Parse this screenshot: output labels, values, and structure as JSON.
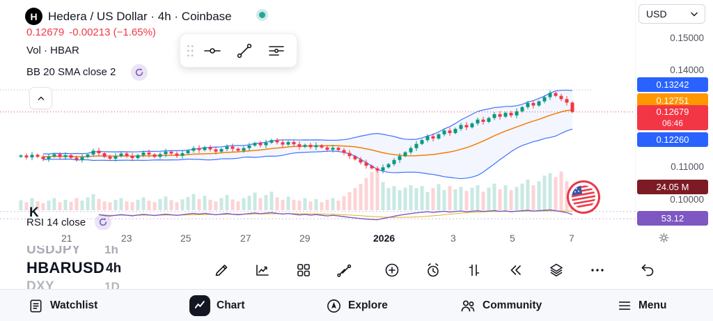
{
  "header": {
    "logo_letter": "H",
    "title": "Hedera / US Dollar · 4h · Coinbase",
    "price": "0.12679",
    "change": "-0.00213 (−1.65%)",
    "vol_label": "Vol · HBAR",
    "bb_label": "BB 20 SMA close 2",
    "rsi_label": "RSI 14 close",
    "currency": "USD"
  },
  "price_scale": {
    "labels": [
      "0.15000",
      "0.14000",
      "0.11000",
      "0.10000"
    ],
    "badges": [
      {
        "text": "0.13242"
      },
      {
        "text": "0.12751"
      },
      {
        "text": "0.12679",
        "sub": "06:46"
      },
      {
        "text": "0.12260"
      },
      {
        "text": "24.05 M"
      },
      {
        "text": "53.12"
      }
    ]
  },
  "x_axis": {
    "labels": [
      "21",
      "23",
      "25",
      "27",
      "29",
      "2026",
      "3",
      "5",
      "7"
    ]
  },
  "watchlist_peek": {
    "clipped_letter": "K",
    "rows": [
      {
        "symbol": "USDJPY",
        "tf": "1h"
      },
      {
        "symbol": "HBARUSD",
        "tf": "4h"
      },
      {
        "symbol": "DXY",
        "tf": "1D"
      }
    ]
  },
  "bottom_nav": {
    "items": [
      "Watchlist",
      "Chart",
      "Explore",
      "Community",
      "Menu"
    ]
  },
  "colors": {
    "up": "#089981",
    "down": "#f23645",
    "bb": "#2962ff",
    "bb_basis": "#f57c00",
    "rsi": "#7e57c2",
    "rsi_ma": "#e0b418",
    "badge_blue": "#2962ff",
    "badge_orange": "#ff9800",
    "badge_red": "#f23645",
    "badge_maroon": "#7c1b23",
    "badge_purple": "#7e57c2",
    "status_teal": "#26a69a"
  },
  "chart_data": {
    "type": "candlestick",
    "symbol": "HBARUSD",
    "exchange": "Coinbase",
    "interval": "4h",
    "title": "Hedera / US Dollar · 4h · Coinbase",
    "ylim": [
      0.0965,
      0.162
    ],
    "x_ticks": [
      "21",
      "23",
      "25",
      "27",
      "29",
      "2026",
      "3",
      "5",
      "7"
    ],
    "current_price": 0.12679,
    "countdown": "06:46",
    "volume_current": "24.05 M",
    "bb": {
      "length": 20,
      "mult": 2,
      "upper": 0.13242,
      "basis": 0.12751,
      "lower": 0.1226
    },
    "rsi": {
      "length": 14,
      "value": 53.12
    },
    "closes": [
      0.1132,
      0.1126,
      0.1134,
      0.1128,
      0.1121,
      0.1129,
      0.1136,
      0.1127,
      0.1133,
      0.1125,
      0.1119,
      0.1127,
      0.1135,
      0.1147,
      0.1139,
      0.1128,
      0.1122,
      0.113,
      0.1138,
      0.1131,
      0.1124,
      0.1133,
      0.1141,
      0.1135,
      0.1128,
      0.1136,
      0.1144,
      0.1138,
      0.1131,
      0.1139,
      0.1147,
      0.1155,
      0.1149,
      0.1158,
      0.1151,
      0.1144,
      0.1152,
      0.116,
      0.1153,
      0.1147,
      0.1155,
      0.1163,
      0.1171,
      0.1164,
      0.1172,
      0.118,
      0.1173,
      0.1166,
      0.1174,
      0.1167,
      0.1159,
      0.1165,
      0.1158,
      0.1164,
      0.1157,
      0.115,
      0.1156,
      0.1149,
      0.114,
      0.113,
      0.112,
      0.111,
      0.11,
      0.1092,
      0.1085,
      0.1095,
      0.1105,
      0.1118,
      0.113,
      0.1142,
      0.1155,
      0.1168,
      0.118,
      0.1192,
      0.1185,
      0.1198,
      0.121,
      0.1202,
      0.1215,
      0.1227,
      0.122,
      0.1232,
      0.1244,
      0.1237,
      0.1249,
      0.1261,
      0.1253,
      0.1265,
      0.1257,
      0.127,
      0.1283,
      0.1296,
      0.1288,
      0.1301,
      0.1314,
      0.1327,
      0.1318,
      0.1308,
      0.1297,
      0.1268
    ],
    "volumes": [
      0.25,
      0.2,
      0.3,
      0.22,
      0.18,
      0.24,
      0.3,
      0.2,
      0.26,
      0.21,
      0.3,
      0.24,
      0.32,
      0.4,
      0.28,
      0.22,
      0.2,
      0.26,
      0.3,
      0.22,
      0.2,
      0.26,
      0.32,
      0.24,
      0.2,
      0.28,
      0.34,
      0.25,
      0.2,
      0.27,
      0.33,
      0.4,
      0.28,
      0.36,
      0.26,
      0.22,
      0.3,
      0.38,
      0.27,
      0.22,
      0.3,
      0.36,
      0.44,
      0.3,
      0.38,
      0.46,
      0.32,
      0.26,
      0.34,
      0.26,
      0.24,
      0.3,
      0.22,
      0.28,
      0.2,
      0.26,
      0.3,
      0.24,
      0.35,
      0.45,
      0.55,
      0.65,
      0.8,
      0.95,
      1.0,
      0.7,
      0.55,
      0.6,
      0.5,
      0.56,
      0.62,
      0.55,
      0.6,
      0.45,
      0.55,
      0.65,
      0.5,
      0.6,
      0.52,
      0.58,
      0.48,
      0.56,
      0.62,
      0.46,
      0.56,
      0.66,
      0.52,
      0.62,
      0.5,
      0.58,
      0.66,
      0.76,
      0.62,
      0.72,
      0.86,
      0.92,
      0.82,
      0.96,
      0.72,
      0.55
    ]
  }
}
